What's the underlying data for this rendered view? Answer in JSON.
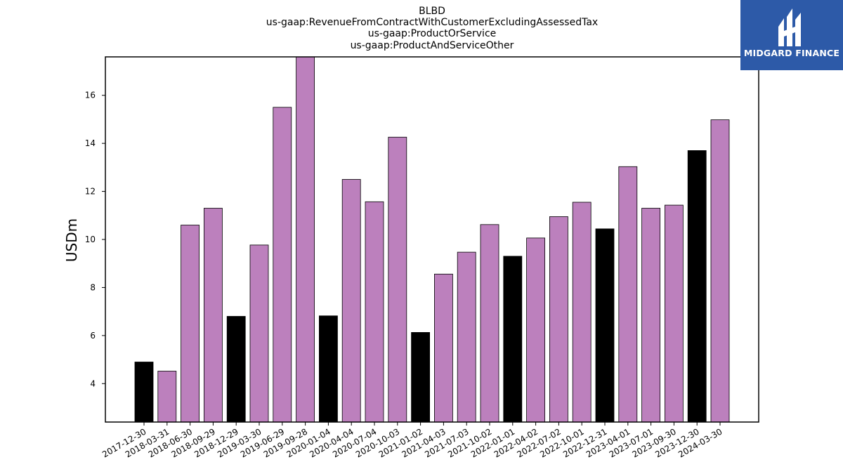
{
  "chart_data": {
    "type": "bar",
    "title_lines": [
      "BLBD",
      "us-gaap:RevenueFromContractWithCustomerExcludingAssessedTax",
      "us-gaap:ProductOrService",
      "us-gaap:ProductAndServiceOther"
    ],
    "ylabel": "USDm",
    "xlabel": "",
    "ylim": [
      2.4,
      17.6
    ],
    "yticks": [
      4,
      6,
      8,
      10,
      12,
      14,
      16
    ],
    "grid": false,
    "categories": [
      "2017-12-30",
      "2018-03-31",
      "2018-06-30",
      "2018-09-29",
      "2018-12-29",
      "2019-03-30",
      "2019-06-29",
      "2019-09-28",
      "2020-01-04",
      "2020-04-04",
      "2020-07-04",
      "2020-10-03",
      "2021-01-02",
      "2021-04-03",
      "2021-07-03",
      "2021-10-02",
      "2022-01-01",
      "2022-04-02",
      "2022-07-02",
      "2022-10-01",
      "2022-12-31",
      "2023-04-01",
      "2023-07-01",
      "2023-09-30",
      "2023-12-30",
      "2024-03-30"
    ],
    "values": [
      4.9,
      4.52,
      10.6,
      11.3,
      6.8,
      9.77,
      15.5,
      17.65,
      6.82,
      12.5,
      11.57,
      14.26,
      6.13,
      8.56,
      9.47,
      10.62,
      9.3,
      10.06,
      10.95,
      11.55,
      10.44,
      13.03,
      11.3,
      11.43,
      13.7,
      14.98
    ],
    "bar_colors": [
      "#000000",
      "#bc80bd",
      "#bc80bd",
      "#bc80bd",
      "#000000",
      "#bc80bd",
      "#bc80bd",
      "#bc80bd",
      "#000000",
      "#bc80bd",
      "#bc80bd",
      "#bc80bd",
      "#000000",
      "#bc80bd",
      "#bc80bd",
      "#bc80bd",
      "#000000",
      "#bc80bd",
      "#bc80bd",
      "#bc80bd",
      "#000000",
      "#bc80bd",
      "#bc80bd",
      "#bc80bd",
      "#000000",
      "#bc80bd"
    ]
  },
  "logo": {
    "text": "MIDGARD FINANCE",
    "background": "#2d5aa8",
    "icon": "midgard-logo-icon"
  }
}
